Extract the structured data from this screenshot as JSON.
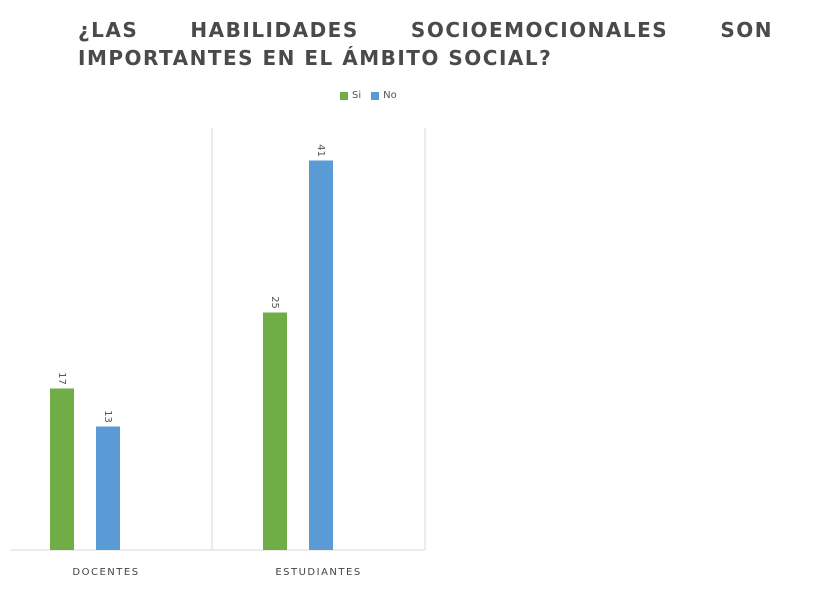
{
  "chart_data": {
    "type": "bar",
    "title": "¿LAS HABILIDADES SOCIOEMOCIONALES SON IMPORTANTES EN EL ÁMBITO SOCIAL?",
    "categories": [
      "DOCENTES",
      "ESTUDIANTES"
    ],
    "series": [
      {
        "name": "Si",
        "values": [
          17,
          25
        ],
        "color": "#70ad47"
      },
      {
        "name": "No",
        "values": [
          13,
          41
        ],
        "color": "#5b9bd5"
      }
    ],
    "xlabel": "",
    "ylabel": "",
    "ylim": [
      0,
      45
    ],
    "grid": false,
    "legend_position": "top"
  }
}
